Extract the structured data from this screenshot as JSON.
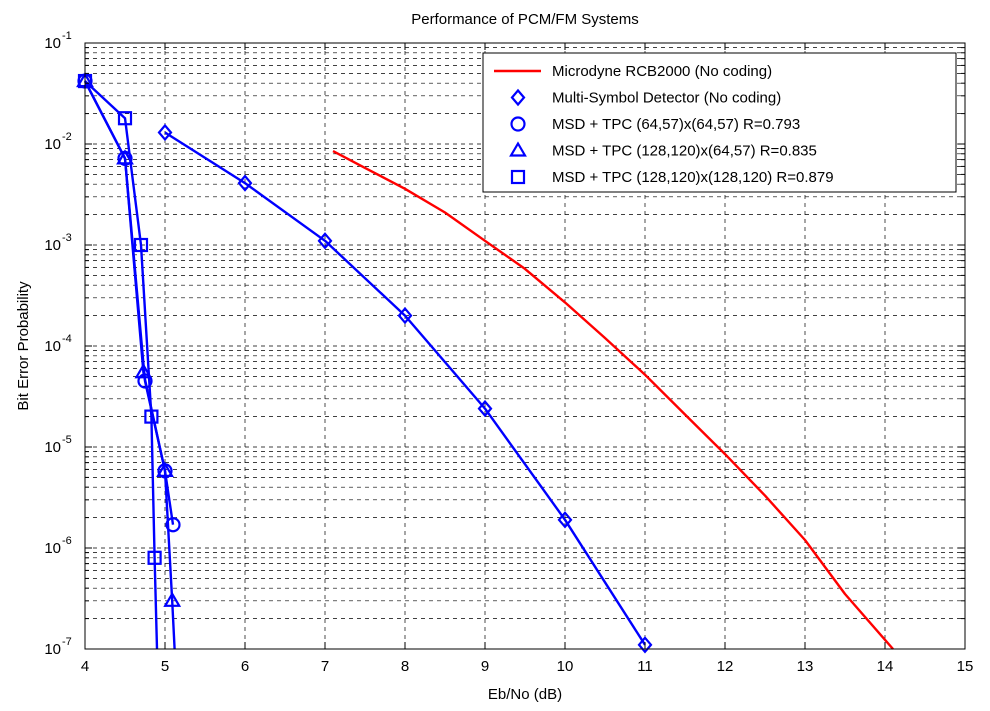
{
  "chart_data": {
    "type": "line",
    "title": "Performance of PCM/FM Systems",
    "xlabel": "Eb/No (dB)",
    "ylabel": "Bit Error Probability",
    "xlim": [
      4,
      15
    ],
    "ylim": [
      1e-07,
      0.1
    ],
    "yscale": "log",
    "grid": true,
    "legend_position": "top-right",
    "x_ticks": [
      {
        "v": 4,
        "label": "4"
      },
      {
        "v": 5,
        "label": "5"
      },
      {
        "v": 6,
        "label": "6"
      },
      {
        "v": 7,
        "label": "7"
      },
      {
        "v": 8,
        "label": "8"
      },
      {
        "v": 9,
        "label": "9"
      },
      {
        "v": 10,
        "label": "10"
      },
      {
        "v": 11,
        "label": "11"
      },
      {
        "v": 12,
        "label": "12"
      },
      {
        "v": 13,
        "label": "13"
      },
      {
        "v": 14,
        "label": "14"
      },
      {
        "v": 15,
        "label": "15"
      }
    ],
    "y_ticks": [
      {
        "exp": -1,
        "base": "10",
        "sup": "-1"
      },
      {
        "exp": -2,
        "base": "10",
        "sup": "-2"
      },
      {
        "exp": -3,
        "base": "10",
        "sup": "-3"
      },
      {
        "exp": -4,
        "base": "10",
        "sup": "-4"
      },
      {
        "exp": -5,
        "base": "10",
        "sup": "-5"
      },
      {
        "exp": -6,
        "base": "10",
        "sup": "-6"
      },
      {
        "exp": -7,
        "base": "10",
        "sup": "-7"
      }
    ],
    "series": [
      {
        "name": "Microdyne RCB2000 (No coding)",
        "color": "#ff0000",
        "marker": "none",
        "x": [
          7.1,
          7.5,
          8,
          8.5,
          9,
          9.5,
          10,
          10.5,
          11,
          11.5,
          12,
          12.5,
          13,
          13.5,
          14.1
        ],
        "y": [
          0.0085,
          0.0058,
          0.0036,
          0.0021,
          0.0011,
          0.00058,
          0.00027,
          0.00012,
          5.2e-05,
          2.1e-05,
          8.5e-06,
          3.3e-06,
          1.2e-06,
          3.5e-07,
          1e-07
        ]
      },
      {
        "name": "Multi-Symbol Detector (No coding)",
        "color": "#0000ff",
        "marker": "diamond",
        "x": [
          5,
          6,
          7,
          8,
          9,
          10,
          11
        ],
        "y": [
          0.013,
          0.0041,
          0.0011,
          0.0002,
          2.4e-05,
          1.9e-06,
          1.1e-07
        ]
      },
      {
        "name": "MSD + TPC (64,57)x(64,57) R=0.793",
        "color": "#0000ff",
        "marker": "circle",
        "x": [
          4,
          4.5,
          4.75,
          5,
          5.1
        ],
        "y": [
          0.042,
          0.0072,
          4.5e-05,
          5.8e-06,
          1.7e-06
        ]
      },
      {
        "name": "MSD + TPC (128,120)x(64,57) R=0.835",
        "color": "#0000ff",
        "marker": "triangle",
        "x": [
          4,
          4.5,
          4.73,
          5,
          5.09,
          5.12
        ],
        "y": [
          0.042,
          0.0072,
          5.5e-05,
          5.8e-06,
          3e-07,
          1e-07
        ]
      },
      {
        "name": "MSD + TPC (128,120)x(128,120) R=0.879",
        "color": "#0000ff",
        "marker": "square",
        "x": [
          4,
          4.5,
          4.7,
          4.83,
          4.87,
          4.9
        ],
        "y": [
          0.042,
          0.018,
          0.001,
          2e-05,
          8e-07,
          1e-07
        ]
      }
    ]
  }
}
